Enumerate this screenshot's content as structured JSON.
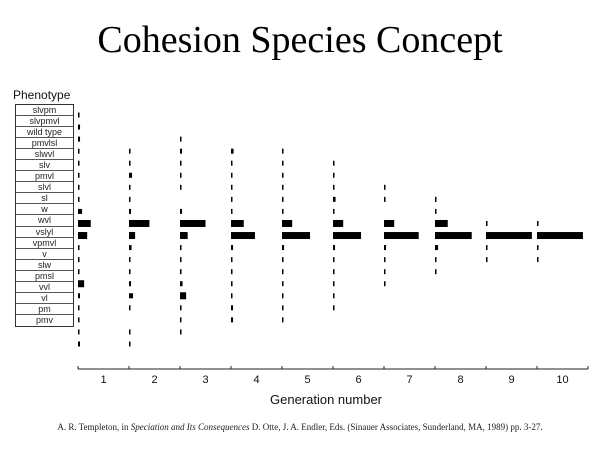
{
  "title": "Cohesion Species Concept",
  "caption": {
    "pre": "A. R. Templeton, in ",
    "book": "Speciation and Its Consequences",
    "post": " D. Otte, J. A. Endler, Eds. (Sinauer Associates, Sunderland, MA, 1989) pp. 3-27."
  },
  "chart_data": {
    "type": "bar",
    "title": "",
    "ylabel": "Phenotype",
    "xlabel": "Generation number",
    "categories": [
      "slvpm",
      "slvpmvl",
      "wild type",
      "pmvlsl",
      "slwvl",
      "slv",
      "pmvl",
      "slvl",
      "sl",
      "w",
      "wvl",
      "vslyl",
      "vpmvl",
      "v",
      "slw",
      "pmsl",
      "vvl",
      "vl",
      "pm",
      "pmv"
    ],
    "generations": [
      "1",
      "2",
      "3",
      "4",
      "5",
      "6",
      "7",
      "8",
      "9",
      "10"
    ],
    "series": [
      {
        "name": "1",
        "values": [
          0.02,
          0.04,
          0.04,
          0.02,
          0.02,
          0.02,
          0.02,
          0.02,
          0.08,
          0.25,
          0.18,
          0.02,
          0.02,
          0.02,
          0.12,
          0.04,
          0.02,
          0.02,
          0.02,
          0.04
        ]
      },
      {
        "name": "2",
        "values": [
          0,
          0,
          0,
          0.02,
          0.03,
          0.06,
          0.02,
          0.02,
          0.04,
          0.4,
          0.12,
          0.05,
          0.02,
          0.02,
          0.04,
          0.08,
          0.02,
          0,
          0.02,
          0.02
        ]
      },
      {
        "name": "3",
        "values": [
          0,
          0,
          0.02,
          0.04,
          0.02,
          0.03,
          0.02,
          0,
          0.04,
          0.5,
          0.15,
          0.02,
          0.02,
          0.03,
          0.05,
          0.12,
          0.03,
          0.02,
          0.02,
          0
        ]
      },
      {
        "name": "4",
        "values": [
          0,
          0,
          0,
          0.05,
          0.02,
          0.02,
          0.02,
          0.02,
          0.02,
          0.25,
          0.47,
          0.04,
          0.02,
          0.02,
          0.03,
          0.02,
          0.04,
          0.04,
          0,
          0
        ]
      },
      {
        "name": "5",
        "values": [
          0,
          0,
          0,
          0.02,
          0.02,
          0.02,
          0.02,
          0.02,
          0.02,
          0.2,
          0.55,
          0.04,
          0.02,
          0.02,
          0.02,
          0.02,
          0.02,
          0.02,
          0,
          0
        ]
      },
      {
        "name": "6",
        "values": [
          0,
          0,
          0,
          0,
          0.02,
          0.02,
          0.02,
          0.05,
          0.02,
          0.2,
          0.55,
          0.04,
          0.02,
          0.02,
          0.02,
          0.02,
          0.02,
          0,
          0,
          0
        ]
      },
      {
        "name": "7",
        "values": [
          0,
          0,
          0,
          0,
          0,
          0,
          0.02,
          0.03,
          0,
          0.2,
          0.68,
          0.04,
          0.02,
          0.02,
          0.02,
          0,
          0,
          0,
          0,
          0
        ]
      },
      {
        "name": "8",
        "values": [
          0,
          0,
          0,
          0,
          0,
          0,
          0,
          0.02,
          0.02,
          0.25,
          0.72,
          0.06,
          0.02,
          0.02,
          0,
          0,
          0,
          0,
          0,
          0
        ]
      },
      {
        "name": "9",
        "values": [
          0,
          0,
          0,
          0,
          0,
          0,
          0,
          0,
          0,
          0.02,
          0.9,
          0.02,
          0.02,
          0,
          0,
          0,
          0,
          0,
          0,
          0
        ]
      },
      {
        "name": "10",
        "values": [
          0,
          0,
          0,
          0,
          0,
          0,
          0,
          0,
          0,
          0.02,
          0.9,
          0.02,
          0.02,
          0,
          0,
          0,
          0,
          0,
          0,
          0
        ]
      }
    ],
    "value_unit": "relative frequency (fraction of generation column width)"
  }
}
